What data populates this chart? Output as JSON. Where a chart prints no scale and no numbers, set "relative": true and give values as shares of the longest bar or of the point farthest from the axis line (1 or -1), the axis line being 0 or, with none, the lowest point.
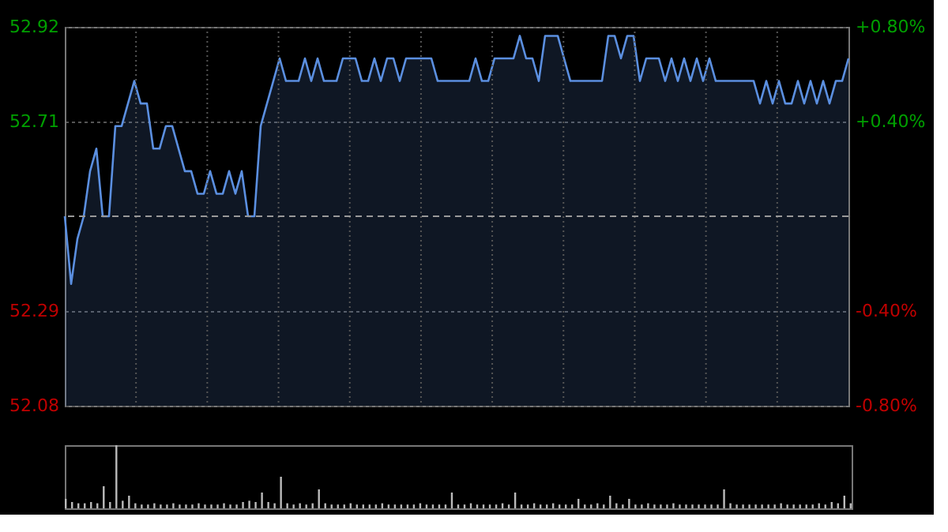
{
  "chart_data": [
    {
      "type": "area",
      "categories": [
        null,
        null,
        null,
        null,
        null,
        null,
        null,
        null,
        null,
        null,
        null,
        null,
        null,
        null,
        null,
        null,
        null,
        null,
        null,
        null,
        null,
        null,
        null,
        null,
        null,
        null,
        null,
        null,
        null,
        null,
        null,
        null,
        null,
        null,
        null,
        null,
        null,
        null,
        null,
        null,
        null,
        null,
        null,
        null,
        null,
        null,
        null,
        null,
        null,
        null,
        null,
        null,
        null,
        null,
        null,
        null,
        null,
        null,
        null,
        null,
        null,
        null,
        null,
        null,
        null,
        null,
        null,
        null,
        null,
        null,
        null,
        null,
        null,
        null,
        null,
        null,
        null,
        null,
        null,
        null,
        null,
        null,
        null,
        null,
        null,
        null,
        null,
        null,
        null,
        null,
        null,
        null,
        null,
        null,
        null,
        null,
        null,
        null,
        null,
        null,
        null,
        null,
        null,
        null,
        null,
        null,
        null,
        null,
        null,
        null,
        null,
        null,
        null,
        null,
        null,
        null,
        null,
        null,
        null,
        null,
        null,
        null,
        null,
        null,
        null
      ],
      "series": [
        {
          "color": "#5b8fe0",
          "values": [
            52.5,
            52.35,
            52.45,
            52.5,
            52.6,
            52.65,
            52.5,
            52.5,
            52.7,
            52.7,
            52.75,
            52.8,
            52.75,
            52.75,
            52.65,
            52.65,
            52.7,
            52.7,
            52.65,
            52.6,
            52.6,
            52.55,
            52.55,
            52.6,
            52.55,
            52.55,
            52.6,
            52.55,
            52.6,
            52.5,
            52.5,
            52.7,
            52.75,
            52.8,
            52.85,
            52.8,
            52.8,
            52.8,
            52.85,
            52.8,
            52.85,
            52.8,
            52.8,
            52.8,
            52.85,
            52.85,
            52.85,
            52.8,
            52.8,
            52.85,
            52.8,
            52.85,
            52.85,
            52.8,
            52.85,
            52.85,
            52.85,
            52.85,
            52.85,
            52.8,
            52.8,
            52.8,
            52.8,
            52.8,
            52.8,
            52.85,
            52.8,
            52.8,
            52.85,
            52.85,
            52.85,
            52.85,
            52.9,
            52.85,
            52.85,
            52.8,
            52.9,
            52.9,
            52.9,
            52.85,
            52.8,
            52.8,
            52.8,
            52.8,
            52.8,
            52.8,
            52.9,
            52.9,
            52.85,
            52.9,
            52.9,
            52.8,
            52.85,
            52.85,
            52.85,
            52.8,
            52.85,
            52.8,
            52.85,
            52.8,
            52.85,
            52.8,
            52.85,
            52.8,
            52.8,
            52.8,
            52.8,
            52.8,
            52.8,
            52.8,
            52.75,
            52.8,
            52.75,
            52.8,
            52.75,
            52.75,
            52.8,
            52.75,
            52.8,
            52.75,
            52.8,
            52.75,
            52.8,
            52.8,
            52.85
          ]
        }
      ],
      "ylim": [
        52.08,
        52.92
      ],
      "yticks": [
        52.08,
        52.29,
        52.71,
        52.92
      ],
      "y2lim": [
        -0.8,
        0.8
      ],
      "y2ticks": [
        {
          "value": -0.8,
          "label": "-0.80%"
        },
        {
          "value": -0.4,
          "label": "-0.40%"
        },
        {
          "value": 0.4,
          "label": "+0.40%"
        },
        {
          "value": 0.8,
          "label": "+0.80%"
        }
      ],
      "ref_lines": [
        {
          "axis": "y",
          "value": 52.5,
          "line_style": "dashed"
        }
      ],
      "grid": true,
      "tick_labels": "y"
    },
    {
      "type": "bar",
      "relative": true,
      "categories": [
        null,
        null,
        null,
        null,
        null,
        null,
        null,
        null,
        null,
        null,
        null,
        null,
        null,
        null,
        null,
        null,
        null,
        null,
        null,
        null,
        null,
        null,
        null,
        null,
        null,
        null,
        null,
        null,
        null,
        null,
        null,
        null,
        null,
        null,
        null,
        null,
        null,
        null,
        null,
        null,
        null,
        null,
        null,
        null,
        null,
        null,
        null,
        null,
        null,
        null,
        null,
        null,
        null,
        null,
        null,
        null,
        null,
        null,
        null,
        null,
        null,
        null,
        null,
        null,
        null,
        null,
        null,
        null,
        null,
        null,
        null,
        null,
        null,
        null,
        null,
        null,
        null,
        null,
        null,
        null,
        null,
        null,
        null,
        null,
        null,
        null,
        null,
        null,
        null,
        null,
        null,
        null,
        null,
        null,
        null,
        null,
        null,
        null,
        null,
        null,
        null,
        null,
        null,
        null,
        null,
        null,
        null,
        null,
        null,
        null,
        null,
        null,
        null,
        null,
        null,
        null,
        null,
        null,
        null,
        null,
        null,
        null,
        null,
        null,
        null
      ],
      "values": [
        0.15,
        0.1,
        0.08,
        0.08,
        0.1,
        0.08,
        0.35,
        0.1,
        1.0,
        0.12,
        0.2,
        0.08,
        0.06,
        0.06,
        0.08,
        0.06,
        0.06,
        0.08,
        0.06,
        0.06,
        0.06,
        0.08,
        0.06,
        0.06,
        0.06,
        0.08,
        0.06,
        0.06,
        0.1,
        0.12,
        0.1,
        0.25,
        0.1,
        0.08,
        0.5,
        0.08,
        0.06,
        0.08,
        0.06,
        0.08,
        0.3,
        0.08,
        0.06,
        0.06,
        0.06,
        0.08,
        0.06,
        0.06,
        0.06,
        0.06,
        0.08,
        0.06,
        0.06,
        0.06,
        0.06,
        0.06,
        0.08,
        0.06,
        0.06,
        0.06,
        0.06,
        0.25,
        0.06,
        0.06,
        0.08,
        0.06,
        0.06,
        0.06,
        0.06,
        0.08,
        0.06,
        0.25,
        0.06,
        0.06,
        0.08,
        0.06,
        0.06,
        0.08,
        0.06,
        0.06,
        0.06,
        0.15,
        0.06,
        0.06,
        0.08,
        0.06,
        0.2,
        0.08,
        0.06,
        0.15,
        0.06,
        0.06,
        0.08,
        0.06,
        0.06,
        0.06,
        0.08,
        0.06,
        0.06,
        0.06,
        0.06,
        0.06,
        0.06,
        0.06,
        0.3,
        0.08,
        0.06,
        0.06,
        0.06,
        0.06,
        0.06,
        0.06,
        0.06,
        0.08,
        0.06,
        0.06,
        0.06,
        0.06,
        0.06,
        0.08,
        0.06,
        0.1,
        0.08,
        0.2,
        0.08
      ],
      "color": "#bbbbbb"
    }
  ]
}
